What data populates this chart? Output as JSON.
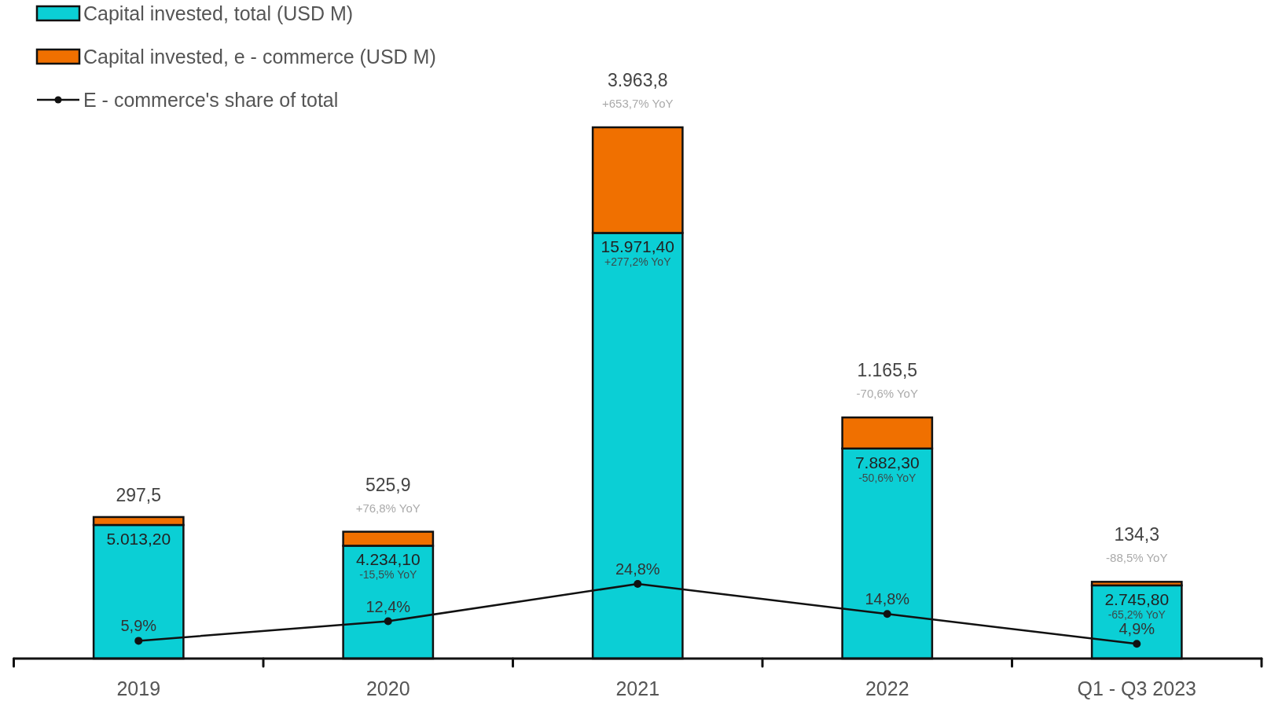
{
  "chart_data": {
    "type": "bar",
    "stacked": true,
    "legend": "top left",
    "marker": "circle",
    "categories": [
      "2019",
      "2020",
      "2021",
      "2022",
      "Q1 - Q3 2023"
    ],
    "series": [
      {
        "name": "Capital invested, total (USD M)",
        "color": "#0bcfd5",
        "values": [
          5013.2,
          4234.1,
          15971.4,
          7882.3,
          2745.8
        ],
        "value_labels": [
          "5.013,20",
          "4.234,10",
          "15.971,40",
          "7.882,30",
          "2.745,80"
        ]
      },
      {
        "name": "Capital invested, e - commerce (USD M)",
        "color": "#f07000",
        "values": [
          297.5,
          525.9,
          3963.8,
          1165.5,
          134.3
        ],
        "value_labels": [
          "297,5",
          "525,9",
          "3.963,8",
          "1.165,5",
          "134,3"
        ]
      },
      {
        "name": "E - commerce's share of total",
        "type": "line",
        "axis": "y2",
        "color": "#111111",
        "values": [
          5.9,
          12.4,
          24.8,
          14.8,
          4.9
        ],
        "value_labels": [
          "5,9%",
          "12,4%",
          "24,8%",
          "14,8%",
          "4,9%"
        ]
      }
    ],
    "annotations": [
      {
        "text": "-15,5% YoY",
        "x": "2020",
        "y": 4234.1
      },
      {
        "text": "+277,2% YoY",
        "x": "2021",
        "y": 15971.4
      },
      {
        "text": "-50,6% YoY",
        "x": "2022",
        "y": 7882.3
      },
      {
        "text": "-65,2% YoY",
        "x": "Q1 - Q3 2023",
        "y": 2745.8
      },
      {
        "text": "+76,8% YoY",
        "x": "2020",
        "y": 4760.0
      },
      {
        "text": "+653,7% YoY",
        "x": "2021",
        "y": 19935.2
      },
      {
        "text": "-70,6% YoY",
        "x": "2022",
        "y": 9047.8
      },
      {
        "text": "-88,5% YoY",
        "x": "Q1 - Q3 2023",
        "y": 2880.1
      }
    ]
  }
}
